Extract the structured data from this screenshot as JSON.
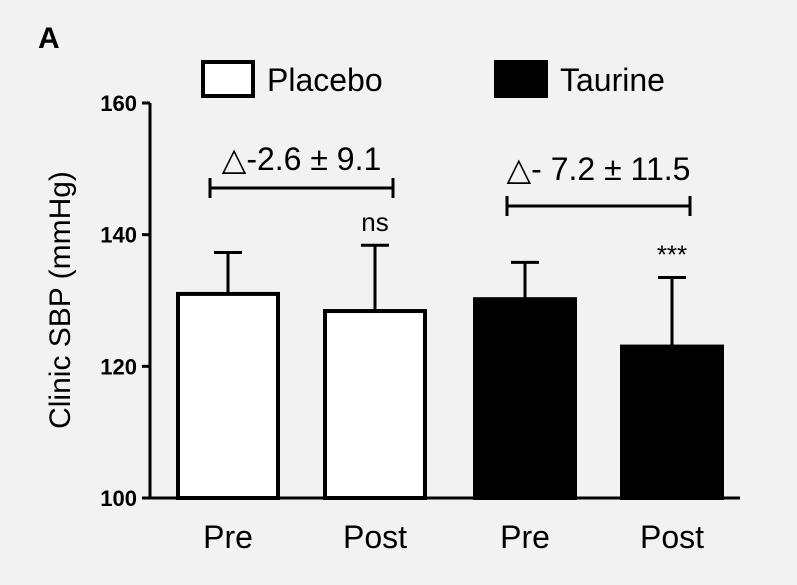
{
  "panel_label": "A",
  "chart_data": {
    "type": "bar",
    "ylabel": "Clinic SBP (mmHg)",
    "xlabel": "",
    "ylim": [
      100,
      160
    ],
    "yticks": [
      100,
      120,
      140,
      160
    ],
    "legend": [
      {
        "name": "Placebo",
        "fill": "#ffffff",
        "stroke": "#000000"
      },
      {
        "name": "Taurine",
        "fill": "#000000",
        "stroke": "#000000"
      }
    ],
    "bars": [
      {
        "category": "Pre",
        "group": "Placebo",
        "value": 131,
        "error": 6.3,
        "fill": "#ffffff",
        "sig": ""
      },
      {
        "category": "Post",
        "group": "Placebo",
        "value": 128.4,
        "error": 10,
        "fill": "#ffffff",
        "sig": "ns"
      },
      {
        "category": "Pre",
        "group": "Taurine",
        "value": 130.2,
        "error": 5.6,
        "fill": "#000000",
        "sig": ""
      },
      {
        "category": "Post",
        "group": "Taurine",
        "value": 123,
        "error": 10.5,
        "fill": "#000000",
        "sig": "***"
      }
    ],
    "annotations": [
      {
        "text": "△-2.6 ± 9.1",
        "from_bar": 0,
        "to_bar": 1
      },
      {
        "text": "△- 7.2 ± 11.5",
        "from_bar": 2,
        "to_bar": 3
      }
    ]
  }
}
